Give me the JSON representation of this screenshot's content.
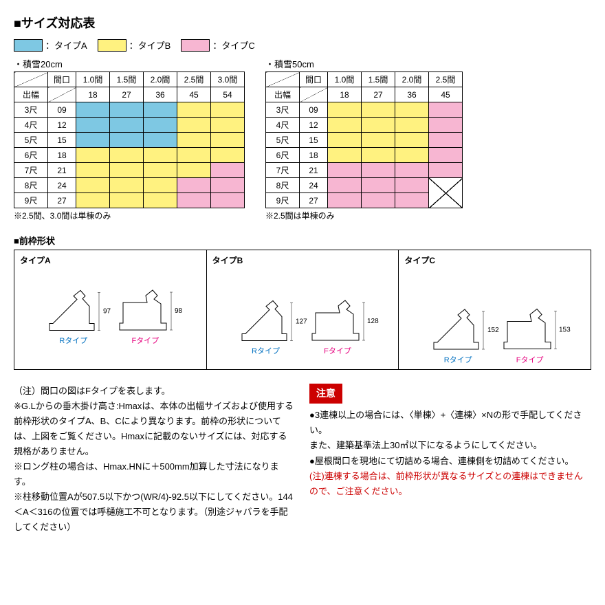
{
  "title": "■サイズ対応表",
  "legend": {
    "items": [
      {
        "label": "：タイプA",
        "color": "#7ec8e3"
      },
      {
        "label": "：タイプB",
        "color": "#fff280"
      },
      {
        "label": "：タイプC",
        "color": "#f7b6d2"
      }
    ]
  },
  "colors": {
    "typeA": "#7ec8e3",
    "typeB": "#fff280",
    "typeC": "#f7b6d2",
    "white": "#ffffff"
  },
  "tables": [
    {
      "caption": "・積雪20cm",
      "col_headers_top": [
        "間口",
        "1.0間",
        "1.5間",
        "2.0間",
        "2.5間",
        "3.0間"
      ],
      "col_headers_codes": [
        "18",
        "27",
        "36",
        "45",
        "54"
      ],
      "depth_label": "出幅",
      "rows": [
        {
          "label": "3尺",
          "code": "09",
          "cells": [
            "A",
            "A",
            "A",
            "B",
            "B"
          ]
        },
        {
          "label": "4尺",
          "code": "12",
          "cells": [
            "A",
            "A",
            "A",
            "B",
            "B"
          ]
        },
        {
          "label": "5尺",
          "code": "15",
          "cells": [
            "A",
            "A",
            "A",
            "B",
            "B"
          ]
        },
        {
          "label": "6尺",
          "code": "18",
          "cells": [
            "B",
            "B",
            "B",
            "B",
            "B"
          ]
        },
        {
          "label": "7尺",
          "code": "21",
          "cells": [
            "B",
            "B",
            "B",
            "B",
            "C"
          ]
        },
        {
          "label": "8尺",
          "code": "24",
          "cells": [
            "B",
            "B",
            "B",
            "C",
            "C"
          ]
        },
        {
          "label": "9尺",
          "code": "27",
          "cells": [
            "B",
            "B",
            "B",
            "C",
            "C"
          ]
        }
      ],
      "note": "※2.5間、3.0間は単棟のみ"
    },
    {
      "caption": "・積雪50cm",
      "col_headers_top": [
        "間口",
        "1.0間",
        "1.5間",
        "2.0間",
        "2.5間"
      ],
      "col_headers_codes": [
        "18",
        "27",
        "36",
        "45"
      ],
      "depth_label": "出幅",
      "rows": [
        {
          "label": "3尺",
          "code": "09",
          "cells": [
            "B",
            "B",
            "B",
            "C"
          ]
        },
        {
          "label": "4尺",
          "code": "12",
          "cells": [
            "B",
            "B",
            "B",
            "C"
          ]
        },
        {
          "label": "5尺",
          "code": "15",
          "cells": [
            "B",
            "B",
            "B",
            "C"
          ]
        },
        {
          "label": "6尺",
          "code": "18",
          "cells": [
            "B",
            "B",
            "B",
            "C"
          ]
        },
        {
          "label": "7尺",
          "code": "21",
          "cells": [
            "C",
            "C",
            "C",
            "C"
          ]
        },
        {
          "label": "8尺",
          "code": "24",
          "cells": [
            "C",
            "C",
            "C",
            "X"
          ]
        },
        {
          "label": "9尺",
          "code": "27",
          "cells": [
            "C",
            "C",
            "C",
            "X"
          ]
        }
      ],
      "note": "※2.5間は単棟のみ"
    }
  ],
  "profile": {
    "heading": "■前枠形状",
    "types": [
      {
        "title": "タイプA",
        "r": {
          "label": "Rタイプ",
          "height": "97"
        },
        "f": {
          "label": "Fタイプ",
          "height": "98"
        }
      },
      {
        "title": "タイプB",
        "r": {
          "label": "Rタイプ",
          "height": "127"
        },
        "f": {
          "label": "Fタイプ",
          "height": "128"
        }
      },
      {
        "title": "タイプC",
        "r": {
          "label": "Rタイプ",
          "height": "152"
        },
        "f": {
          "label": "Fタイプ",
          "height": "153"
        }
      }
    ]
  },
  "notice_label": "注意",
  "notes_left": [
    "（注）間口の図はFタイプを表します。",
    "※G.Lからの垂木掛け高さ:Hmaxは、本体の出幅サイズおよび使用する前枠形状のタイプA、B、Cにより異なります。前枠の形状については、上図をご覧ください。Hmaxに記載のないサイズには、対応する規格がありません。",
    "※ロング柱の場合は、Hmax.HNに＋500mm加算した寸法になります。",
    "※柱移動位置Aが507.5以下かつ(WR/4)-92.5以下にしてください。144＜A＜316の位置では呼樋施工不可となります。（別途ジャバラを手配してください）"
  ],
  "notes_right": [
    "●3連棟以上の場合には、〈単棟〉+〈連棟〉×Nの形で手配してください。\nまた、建築基準法上30㎡以下になるようにしてください。",
    "●屋根間口を現地にて切詰める場合、連棟側を切詰めてください。"
  ],
  "notes_right_red": "(注)連棟する場合は、前枠形状が異なるサイズとの連棟はできませんので、ご注意ください。"
}
